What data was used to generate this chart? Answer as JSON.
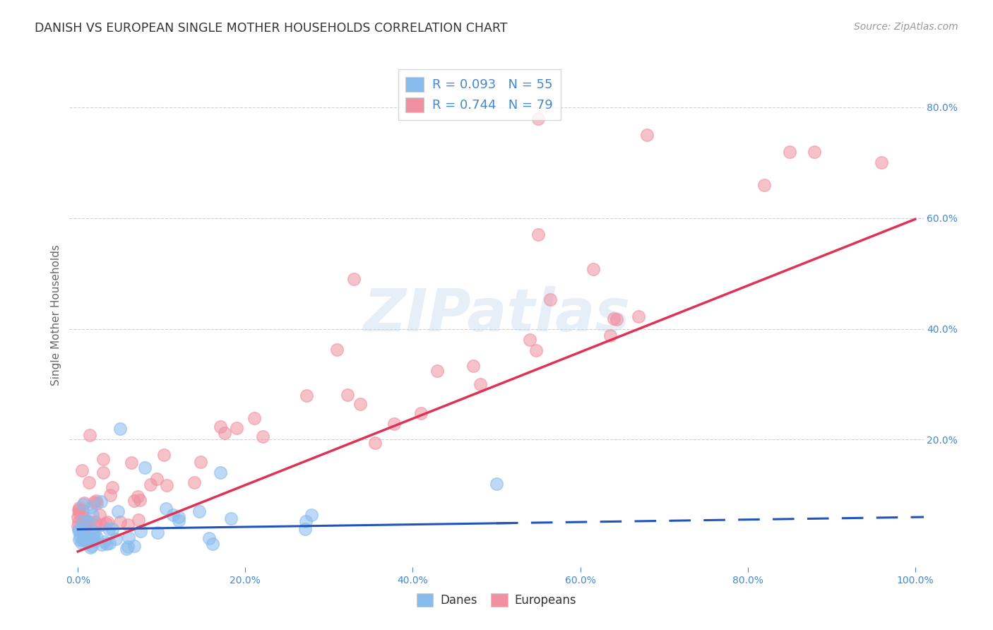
{
  "title": "DANISH VS EUROPEAN SINGLE MOTHER HOUSEHOLDS CORRELATION CHART",
  "source": "Source: ZipAtlas.com",
  "ylabel": "Single Mother Households",
  "watermark": "ZIPatlas",
  "legend_danes_R": "0.093",
  "legend_danes_N": "55",
  "legend_eur_R": "0.744",
  "legend_eur_N": "79",
  "bg_color": "#ffffff",
  "grid_color": "#cccccc",
  "danes_scatter_color": "#88bbee",
  "europeans_scatter_color": "#f090a0",
  "danes_line_color": "#2255bb",
  "europeans_line_color": "#dd3355",
  "title_color": "#333333",
  "source_color": "#999999",
  "tick_color": "#4488cc",
  "ylabel_color": "#666666",
  "legend_text_color": "#4488cc",
  "legend_r_color": "#4488cc",
  "legend_n_color": "#4488cc",
  "xlim": [
    0.0,
    1.0
  ],
  "ylim": [
    0.0,
    0.88
  ],
  "xticks": [
    0.0,
    0.2,
    0.4,
    0.6,
    0.8,
    1.0
  ],
  "xtick_labels": [
    "0.0%",
    "20.0%",
    "40.0%",
    "60.0%",
    "80.0%",
    "100.0%"
  ],
  "yticks_right": [
    0.2,
    0.4,
    0.6,
    0.8
  ],
  "ytick_labels_right": [
    "20.0%",
    "40.0%",
    "60.0%",
    "80.0%"
  ],
  "danes_line_slope": 0.022,
  "danes_line_intercept": 0.038,
  "eur_line_slope": 0.6,
  "eur_line_intercept": -0.002,
  "scatter_size": 160,
  "scatter_alpha": 0.55,
  "scatter_linewidth": 1.2
}
